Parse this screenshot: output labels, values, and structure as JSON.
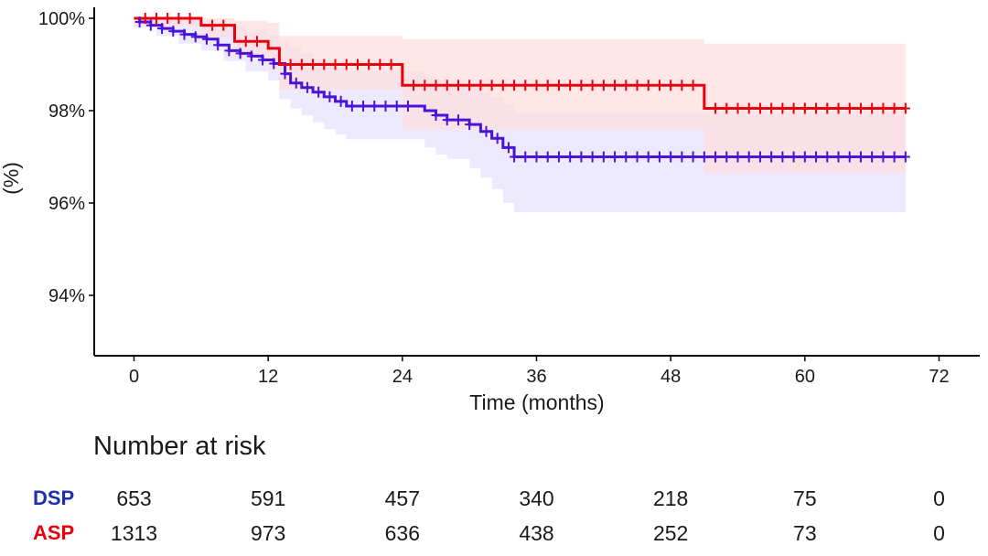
{
  "chart_data": {
    "type": "line",
    "subtype": "kaplan-meier",
    "title": "",
    "xlabel": "Time (months)",
    "ylabel": "(%)",
    "xlim": [
      0,
      72
    ],
    "ylim": [
      93,
      100
    ],
    "x_ticks": [
      0,
      12,
      24,
      36,
      48,
      60,
      72
    ],
    "y_ticks": [
      94,
      96,
      98,
      100
    ],
    "y_tick_labels": [
      "94%",
      "96%",
      "98%",
      "100%"
    ],
    "grid": false,
    "series": [
      {
        "name": "DSP",
        "color": "#4a14d8",
        "band_color": "#e6e1ff",
        "steps": [
          [
            0,
            100
          ],
          [
            0.5,
            99.92
          ],
          [
            1.5,
            99.85
          ],
          [
            2.5,
            99.78
          ],
          [
            3.5,
            99.72
          ],
          [
            4.5,
            99.65
          ],
          [
            5.5,
            99.6
          ],
          [
            6.5,
            99.55
          ],
          [
            7.5,
            99.42
          ],
          [
            8.5,
            99.3
          ],
          [
            9.5,
            99.24
          ],
          [
            10.5,
            99.18
          ],
          [
            11.5,
            99.1
          ],
          [
            12.5,
            99.02
          ],
          [
            13.5,
            98.8
          ],
          [
            14,
            98.6
          ],
          [
            15,
            98.5
          ],
          [
            16,
            98.4
          ],
          [
            17,
            98.3
          ],
          [
            18,
            98.2
          ],
          [
            19,
            98.1
          ],
          [
            26,
            98.0
          ],
          [
            27,
            97.9
          ],
          [
            28,
            97.8
          ],
          [
            30,
            97.7
          ],
          [
            31,
            97.55
          ],
          [
            32,
            97.4
          ],
          [
            33,
            97.2
          ],
          [
            34,
            97.0
          ],
          [
            69,
            97.0
          ]
        ],
        "band": [
          [
            0,
            100,
            99.8
          ],
          [
            2,
            100,
            99.62
          ],
          [
            4,
            99.98,
            99.45
          ],
          [
            6,
            99.92,
            99.3
          ],
          [
            8,
            99.85,
            99.08
          ],
          [
            10,
            99.75,
            98.85
          ],
          [
            12,
            99.65,
            98.65
          ],
          [
            13,
            99.5,
            98.25
          ],
          [
            14,
            99.38,
            98.05
          ],
          [
            15,
            99.25,
            97.9
          ],
          [
            16,
            99.12,
            97.75
          ],
          [
            17,
            99.0,
            97.6
          ],
          [
            18,
            98.92,
            97.48
          ],
          [
            19,
            98.85,
            97.38
          ],
          [
            26,
            98.75,
            97.2
          ],
          [
            27,
            98.68,
            97.05
          ],
          [
            28,
            98.6,
            96.95
          ],
          [
            30,
            98.5,
            96.75
          ],
          [
            31,
            98.4,
            96.55
          ],
          [
            32,
            98.3,
            96.3
          ],
          [
            33,
            98.15,
            96.0
          ],
          [
            34,
            97.95,
            95.8
          ],
          [
            69,
            97.95,
            95.8
          ]
        ],
        "censor_x": [
          0.5,
          1.5,
          2.5,
          3.5,
          4.5,
          5.5,
          6.5,
          7.5,
          8.5,
          9.5,
          10.5,
          11.5,
          12.5,
          13.5,
          14.5,
          15.5,
          16.5,
          17.5,
          18.5,
          19.5,
          20.5,
          21.5,
          22.5,
          23.5,
          24.5,
          27,
          28,
          29,
          30,
          31.5,
          32.5,
          33.5,
          34,
          35,
          36,
          37,
          38,
          39,
          40,
          41,
          42,
          43,
          44,
          45,
          46,
          47,
          48,
          49,
          50,
          51,
          52,
          53,
          54,
          55,
          56,
          57,
          58,
          59,
          60,
          61,
          62,
          63,
          64,
          65,
          66,
          67,
          68,
          69
        ],
        "at_risk": [
          653,
          591,
          457,
          340,
          218,
          75,
          0
        ]
      },
      {
        "name": "ASP",
        "color": "#e8000d",
        "band_color": "#ffdede",
        "steps": [
          [
            0,
            100
          ],
          [
            6,
            99.85
          ],
          [
            9,
            99.5
          ],
          [
            12,
            99.35
          ],
          [
            13,
            99.0
          ],
          [
            24,
            98.55
          ],
          [
            51,
            98.05
          ],
          [
            69,
            98.05
          ]
        ],
        "band": [
          [
            0,
            100,
            99.82
          ],
          [
            6,
            100,
            99.6
          ],
          [
            9,
            99.95,
            99.15
          ],
          [
            12,
            99.9,
            98.9
          ],
          [
            13,
            99.62,
            98.45
          ],
          [
            24,
            99.55,
            97.6
          ],
          [
            51,
            99.45,
            96.65
          ],
          [
            69,
            99.45,
            96.65
          ]
        ],
        "censor_x": [
          1,
          2,
          3,
          4,
          5,
          7,
          8,
          10,
          11,
          14,
          15,
          16,
          17,
          18,
          19,
          20,
          21,
          22,
          23,
          25,
          26,
          27,
          28,
          29,
          30,
          31,
          32,
          33,
          34,
          35,
          36,
          37,
          38,
          39,
          40,
          41,
          42,
          43,
          44,
          45,
          46,
          47,
          48,
          49,
          50,
          52,
          53,
          54,
          55,
          56,
          57,
          58,
          59,
          60,
          61,
          62,
          63,
          64,
          65,
          66,
          67,
          68,
          69
        ],
        "at_risk": [
          1313,
          973,
          636,
          438,
          252,
          73,
          0
        ]
      }
    ]
  },
  "risk_table": {
    "title": "Number at risk",
    "times": [
      0,
      12,
      24,
      36,
      48,
      60,
      72
    ],
    "rows": [
      {
        "name": "DSP",
        "color": "#1f2fb0",
        "values": [
          "653",
          "591",
          "457",
          "340",
          "218",
          "75",
          "0"
        ]
      },
      {
        "name": "ASP",
        "color": "#e8000d",
        "values": [
          "1313",
          "973",
          "636",
          "438",
          "252",
          "73",
          "0"
        ]
      }
    ]
  }
}
